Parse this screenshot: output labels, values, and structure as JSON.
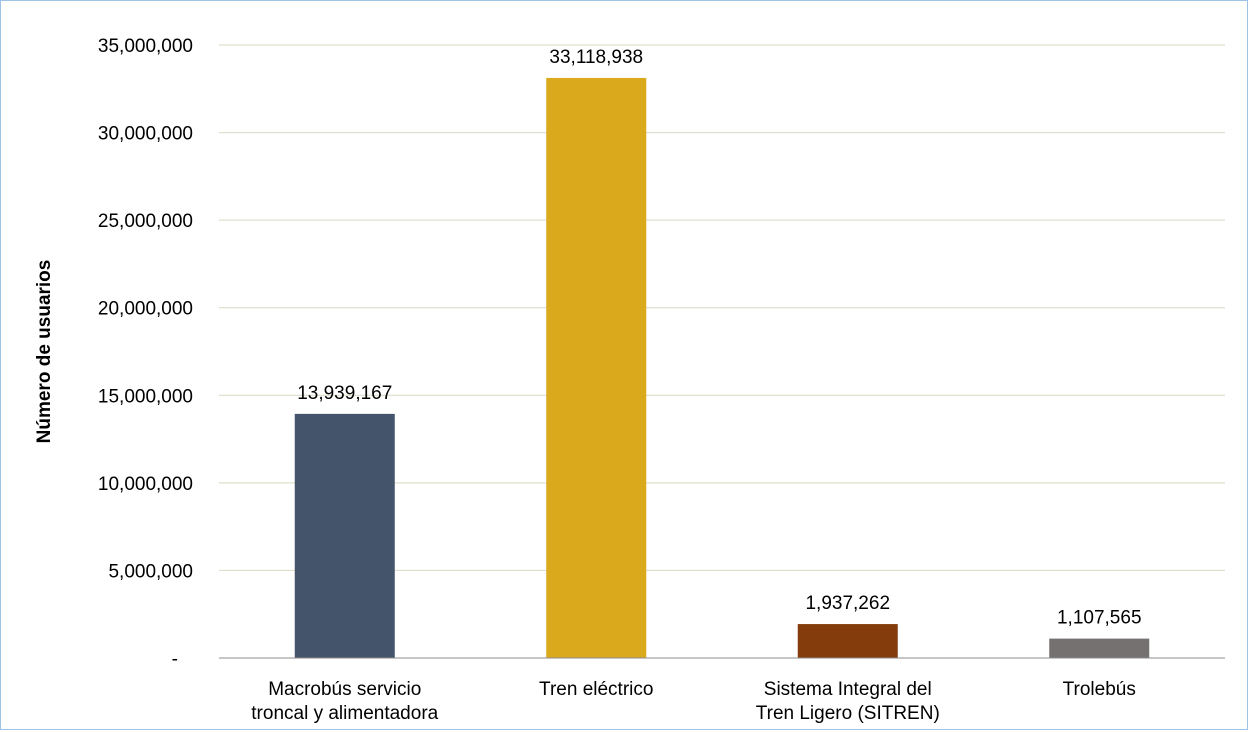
{
  "chart_data": {
    "type": "bar",
    "categories": [
      [
        "Macrobús servicio",
        "troncal y alimentadora"
      ],
      [
        "Tren eléctrico"
      ],
      [
        "Sistema Integral del",
        "Tren Ligero (SITREN)"
      ],
      [
        "Trolebús"
      ]
    ],
    "values": [
      13939167,
      33118938,
      1937262,
      1107565
    ],
    "data_labels": [
      "13,939,167",
      "33,118,938",
      "1,937,262",
      "1,107,565"
    ],
    "bar_colors": [
      "#44546a",
      "#dba91c",
      "#843c0c",
      "#767171"
    ],
    "ylabel": "Número de usuarios",
    "ylim": [
      0,
      35000000
    ],
    "y_ticks": [
      0,
      5000000,
      10000000,
      15000000,
      20000000,
      25000000,
      30000000,
      35000000
    ],
    "y_tick_labels": [
      "-",
      "5,000,000",
      "10,000,000",
      "15,000,000",
      "20,000,000",
      "25,000,000",
      "30,000,000",
      "35,000,000"
    ],
    "grid": true,
    "gridline_color": "#d9d9c3",
    "legend": "none"
  }
}
